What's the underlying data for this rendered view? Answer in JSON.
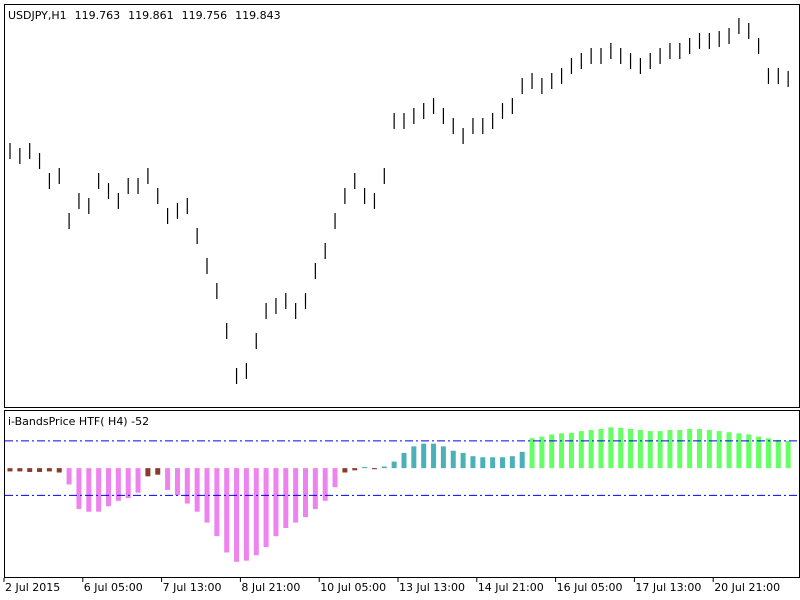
{
  "chart_data": [
    {
      "type": "ohlc",
      "symbol": "USDJPY,H1",
      "ohlc": [
        119.763,
        119.861,
        119.756,
        119.843
      ],
      "color": "#000000",
      "ylim": [
        116.5,
        120.5
      ],
      "high": [
        119.13,
        119.08,
        119.13,
        119.03,
        118.83,
        118.88,
        118.43,
        118.63,
        118.58,
        118.83,
        118.73,
        118.63,
        118.78,
        118.78,
        118.88,
        118.68,
        118.48,
        118.53,
        118.58,
        118.28,
        117.98,
        117.73,
        117.33,
        116.88,
        116.93,
        117.23,
        117.53,
        117.58,
        117.63,
        117.53,
        117.63,
        117.93,
        118.13,
        118.43,
        118.68,
        118.83,
        118.68,
        118.63,
        118.88,
        119.43,
        119.43,
        119.48,
        119.53,
        119.58,
        119.48,
        119.38,
        119.28,
        119.38,
        119.38,
        119.43,
        119.53,
        119.58,
        119.78,
        119.83,
        119.78,
        119.83,
        119.88,
        119.98,
        120.03,
        120.08,
        120.08,
        120.13,
        120.08,
        120.03,
        119.98,
        120.03,
        120.08,
        120.13,
        120.13,
        120.18,
        120.23,
        120.23,
        120.25,
        120.28,
        120.38,
        120.33,
        120.18,
        119.88,
        119.88,
        119.85
      ],
      "low": [
        118.97,
        118.92,
        118.97,
        118.87,
        118.67,
        118.72,
        118.27,
        118.47,
        118.42,
        118.67,
        118.57,
        118.47,
        118.62,
        118.62,
        118.72,
        118.52,
        118.32,
        118.37,
        118.42,
        118.12,
        117.82,
        117.57,
        117.17,
        116.72,
        116.77,
        117.07,
        117.37,
        117.42,
        117.47,
        117.37,
        117.47,
        117.77,
        117.97,
        118.27,
        118.52,
        118.67,
        118.52,
        118.47,
        118.72,
        119.27,
        119.27,
        119.32,
        119.37,
        119.42,
        119.32,
        119.22,
        119.12,
        119.22,
        119.22,
        119.27,
        119.37,
        119.42,
        119.62,
        119.67,
        119.62,
        119.67,
        119.72,
        119.82,
        119.87,
        119.92,
        119.92,
        119.97,
        119.92,
        119.87,
        119.82,
        119.87,
        119.92,
        119.97,
        119.97,
        120.02,
        120.07,
        120.07,
        120.09,
        120.12,
        120.22,
        120.17,
        120.02,
        119.72,
        119.72,
        119.69
      ]
    },
    {
      "type": "histogram",
      "title": "i-BandsPrice HTF( H4) -52",
      "ylim": [
        -200,
        105
      ],
      "levels": [
        50,
        -50
      ],
      "level_color": "#0000ff",
      "series": [
        {
          "color": "#8b3a2b",
          "values": [
            -6,
            -6,
            -7,
            -7,
            -6,
            -8,
            null,
            null,
            null,
            null,
            null,
            null,
            null,
            null,
            -15,
            -12,
            null,
            null,
            null,
            null,
            null,
            null,
            null,
            null,
            null,
            null,
            null,
            null,
            null,
            null,
            null,
            null,
            null,
            null,
            -8,
            -4,
            null,
            -2,
            null,
            null,
            null,
            null,
            null,
            null,
            null,
            null,
            null,
            null,
            null,
            null,
            null,
            null,
            null,
            null,
            null,
            null,
            null,
            null,
            null,
            null,
            null,
            null,
            null,
            null,
            null,
            null,
            null,
            null,
            null,
            null,
            null,
            null,
            null,
            null,
            null,
            null,
            null,
            null,
            null,
            null
          ]
        },
        {
          "color": "#ee82ee",
          "values": [
            null,
            null,
            null,
            null,
            null,
            null,
            -30,
            -75,
            -80,
            -80,
            -70,
            -60,
            -55,
            -45,
            null,
            null,
            -40,
            -50,
            -65,
            -80,
            -100,
            -125,
            -155,
            -172,
            -170,
            -160,
            -145,
            -125,
            -110,
            -100,
            -90,
            -75,
            -60,
            -35,
            null,
            null,
            null,
            null,
            null,
            null,
            null,
            null,
            null,
            null,
            null,
            null,
            null,
            null,
            null,
            null,
            null,
            null,
            null,
            null,
            null,
            null,
            null,
            null,
            null,
            null,
            null,
            null,
            null,
            null,
            null,
            null,
            null,
            null,
            null,
            null,
            null,
            null,
            null,
            null,
            null,
            null,
            null,
            null,
            null,
            null
          ]
        },
        {
          "color": "#4bb0b8",
          "values": [
            null,
            null,
            null,
            null,
            null,
            null,
            null,
            null,
            null,
            null,
            null,
            null,
            null,
            null,
            null,
            null,
            null,
            null,
            null,
            null,
            null,
            null,
            null,
            null,
            null,
            null,
            null,
            null,
            null,
            null,
            null,
            null,
            null,
            null,
            null,
            null,
            2,
            null,
            3,
            12,
            28,
            40,
            45,
            45,
            40,
            32,
            28,
            22,
            20,
            20,
            20,
            22,
            30,
            null,
            null,
            null,
            null,
            null,
            null,
            null,
            null,
            null,
            null,
            null,
            null,
            null,
            null,
            null,
            null,
            null,
            null,
            null,
            null,
            null,
            null,
            null,
            null,
            null,
            null,
            null
          ]
        },
        {
          "color": "#66ff66",
          "values": [
            null,
            null,
            null,
            null,
            null,
            null,
            null,
            null,
            null,
            null,
            null,
            null,
            null,
            null,
            null,
            null,
            null,
            null,
            null,
            null,
            null,
            null,
            null,
            null,
            null,
            null,
            null,
            null,
            null,
            null,
            null,
            null,
            null,
            null,
            null,
            null,
            null,
            null,
            null,
            null,
            null,
            null,
            null,
            null,
            null,
            null,
            null,
            null,
            null,
            null,
            null,
            null,
            null,
            55,
            58,
            62,
            64,
            65,
            68,
            70,
            72,
            75,
            74,
            72,
            70,
            68,
            68,
            70,
            70,
            72,
            72,
            70,
            68,
            66,
            64,
            62,
            58,
            55,
            52,
            50
          ]
        }
      ],
      "xticks": [
        {
          "value": 0,
          "label": "2 Jul 2015"
        },
        {
          "value": 8,
          "label": "6 Jul 05:00"
        },
        {
          "value": 16,
          "label": "7 Jul 13:00"
        },
        {
          "value": 24,
          "label": "8 Jul 21:00"
        },
        {
          "value": 32,
          "label": "10 Jul 05:00"
        },
        {
          "value": 40,
          "label": "13 Jul 13:00"
        },
        {
          "value": 48,
          "label": "14 Jul 21:00"
        },
        {
          "value": 56,
          "label": "16 Jul 05:00"
        },
        {
          "value": 64,
          "label": "17 Jul 13:00"
        },
        {
          "value": 72,
          "label": "20 Jul 21:00"
        }
      ]
    }
  ]
}
